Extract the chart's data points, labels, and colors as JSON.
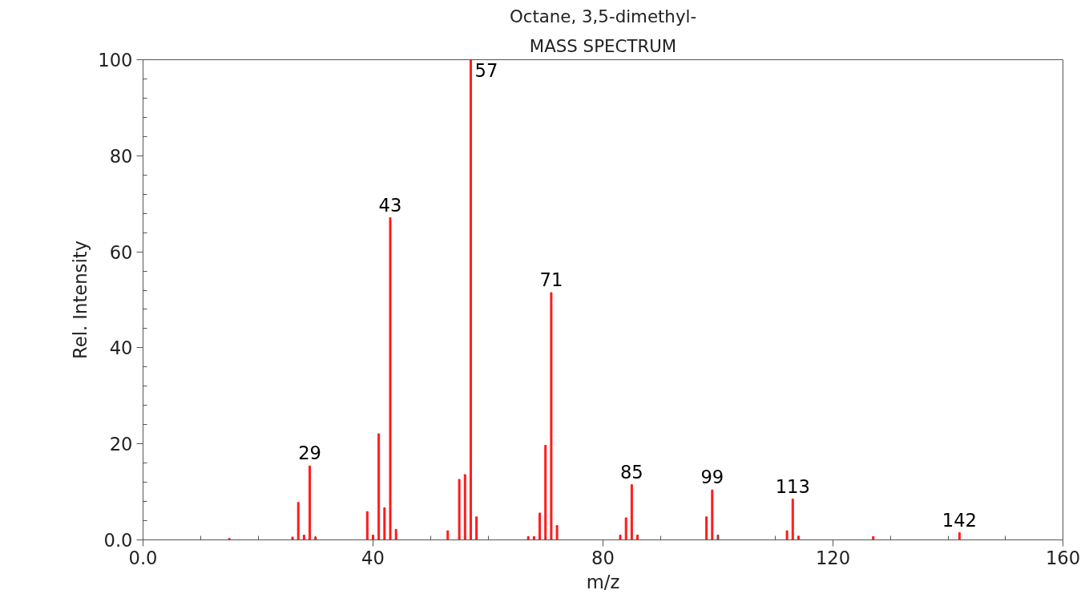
{
  "chart_data": {
    "type": "bar",
    "title": "Octane, 3,5-dimethyl-",
    "subtitle": "MASS SPECTRUM",
    "xlabel": "m/z",
    "ylabel": "Rel. Intensity",
    "x": [
      15,
      26,
      27,
      28,
      29,
      30,
      39,
      40,
      41,
      42,
      43,
      44,
      53,
      55,
      56,
      57,
      58,
      67,
      68,
      69,
      70,
      71,
      72,
      83,
      84,
      85,
      86,
      98,
      99,
      100,
      112,
      113,
      114,
      127,
      142
    ],
    "values": [
      0.3,
      0.6,
      7.8,
      1.0,
      15.4,
      0.6,
      5.9,
      1.0,
      22.1,
      6.7,
      67.1,
      2.2,
      1.9,
      12.6,
      13.6,
      100,
      4.8,
      0.7,
      0.7,
      5.6,
      19.7,
      51.5,
      3.0,
      1.0,
      4.6,
      11.5,
      1.0,
      4.8,
      10.4,
      1.0,
      1.9,
      8.5,
      0.8,
      0.7,
      1.5
    ],
    "color": "#ff0000",
    "xlim": [
      0,
      160
    ],
    "xticks": [
      {
        "value": 0,
        "label": "0.0"
      },
      {
        "value": 10,
        "label": null
      },
      {
        "value": 20,
        "label": null
      },
      {
        "value": 30,
        "label": null
      },
      40,
      {
        "value": 50,
        "label": null
      },
      {
        "value": 60,
        "label": null
      },
      {
        "value": 70,
        "label": null
      },
      80,
      {
        "value": 90,
        "label": null
      },
      {
        "value": 100,
        "label": null
      },
      {
        "value": 110,
        "label": null
      },
      120,
      {
        "value": 130,
        "label": null
      },
      {
        "value": 140,
        "label": null
      },
      {
        "value": 150,
        "label": null
      },
      160
    ],
    "ylim": [
      0,
      100
    ],
    "yticks": [
      {
        "value": 0,
        "label": "0.0"
      },
      {
        "value": 4,
        "label": null
      },
      {
        "value": 8,
        "label": null
      },
      {
        "value": 12,
        "label": null
      },
      {
        "value": 16,
        "label": null
      },
      20,
      {
        "value": 24,
        "label": null
      },
      {
        "value": 28,
        "label": null
      },
      {
        "value": 32,
        "label": null
      },
      {
        "value": 36,
        "label": null
      },
      40,
      {
        "value": 44,
        "label": null
      },
      {
        "value": 48,
        "label": null
      },
      {
        "value": 52,
        "label": null
      },
      {
        "value": 56,
        "label": null
      },
      60,
      {
        "value": 64,
        "label": null
      },
      {
        "value": 68,
        "label": null
      },
      {
        "value": 72,
        "label": null
      },
      {
        "value": 76,
        "label": null
      },
      80,
      {
        "value": 84,
        "label": null
      },
      {
        "value": 88,
        "label": null
      },
      {
        "value": 92,
        "label": null
      },
      {
        "value": 96,
        "label": null
      },
      100
    ],
    "annotations": [
      {
        "text": "29",
        "x": 29,
        "y": 15.4
      },
      {
        "text": "43",
        "x": 43,
        "y": 67.1
      },
      {
        "text": "57",
        "x": 57,
        "y": 100
      },
      {
        "text": "71",
        "x": 71,
        "y": 51.5
      },
      {
        "text": "85",
        "x": 85,
        "y": 11.5
      },
      {
        "text": "99",
        "x": 99,
        "y": 10.4
      },
      {
        "text": "113",
        "x": 113,
        "y": 8.5
      },
      {
        "text": "142",
        "x": 142,
        "y": 1.5
      }
    ],
    "grid": false
  }
}
